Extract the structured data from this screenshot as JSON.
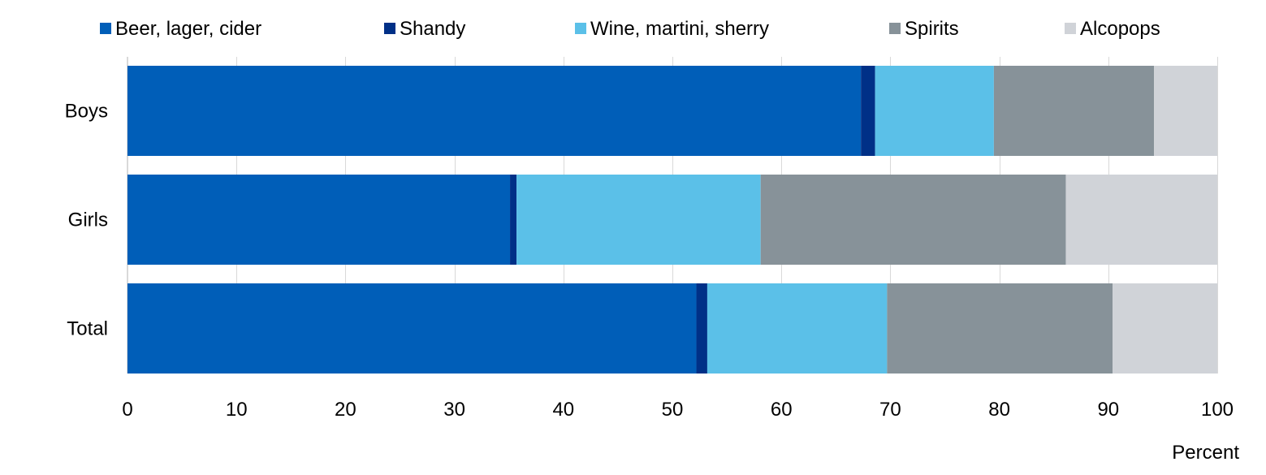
{
  "chart_data": {
    "type": "bar",
    "orientation": "horizontal",
    "stacked": true,
    "categories": [
      "Boys",
      "Girls",
      "Total"
    ],
    "series": [
      {
        "name": "Beer, lager, cider",
        "color": "#005eb8",
        "values": [
          67.3,
          35.1,
          52.2
        ]
      },
      {
        "name": "Shandy",
        "color": "#003087",
        "values": [
          1.3,
          0.6,
          1.0
        ]
      },
      {
        "name": "Wine, martini, sherry",
        "color": "#5bc0e8",
        "values": [
          10.9,
          22.4,
          16.5
        ]
      },
      {
        "name": "Spirits",
        "color": "#879299",
        "values": [
          14.7,
          28.0,
          20.7
        ]
      },
      {
        "name": "Alcopops",
        "color": "#d0d3d8",
        "values": [
          5.8,
          13.9,
          9.6
        ]
      }
    ],
    "xlabel": "Percent",
    "ylabel": "",
    "xlim": [
      0,
      100
    ],
    "xticks": [
      0,
      10,
      20,
      30,
      40,
      50,
      60,
      70,
      80,
      90,
      100
    ],
    "grid": true,
    "legend_position": "top"
  }
}
